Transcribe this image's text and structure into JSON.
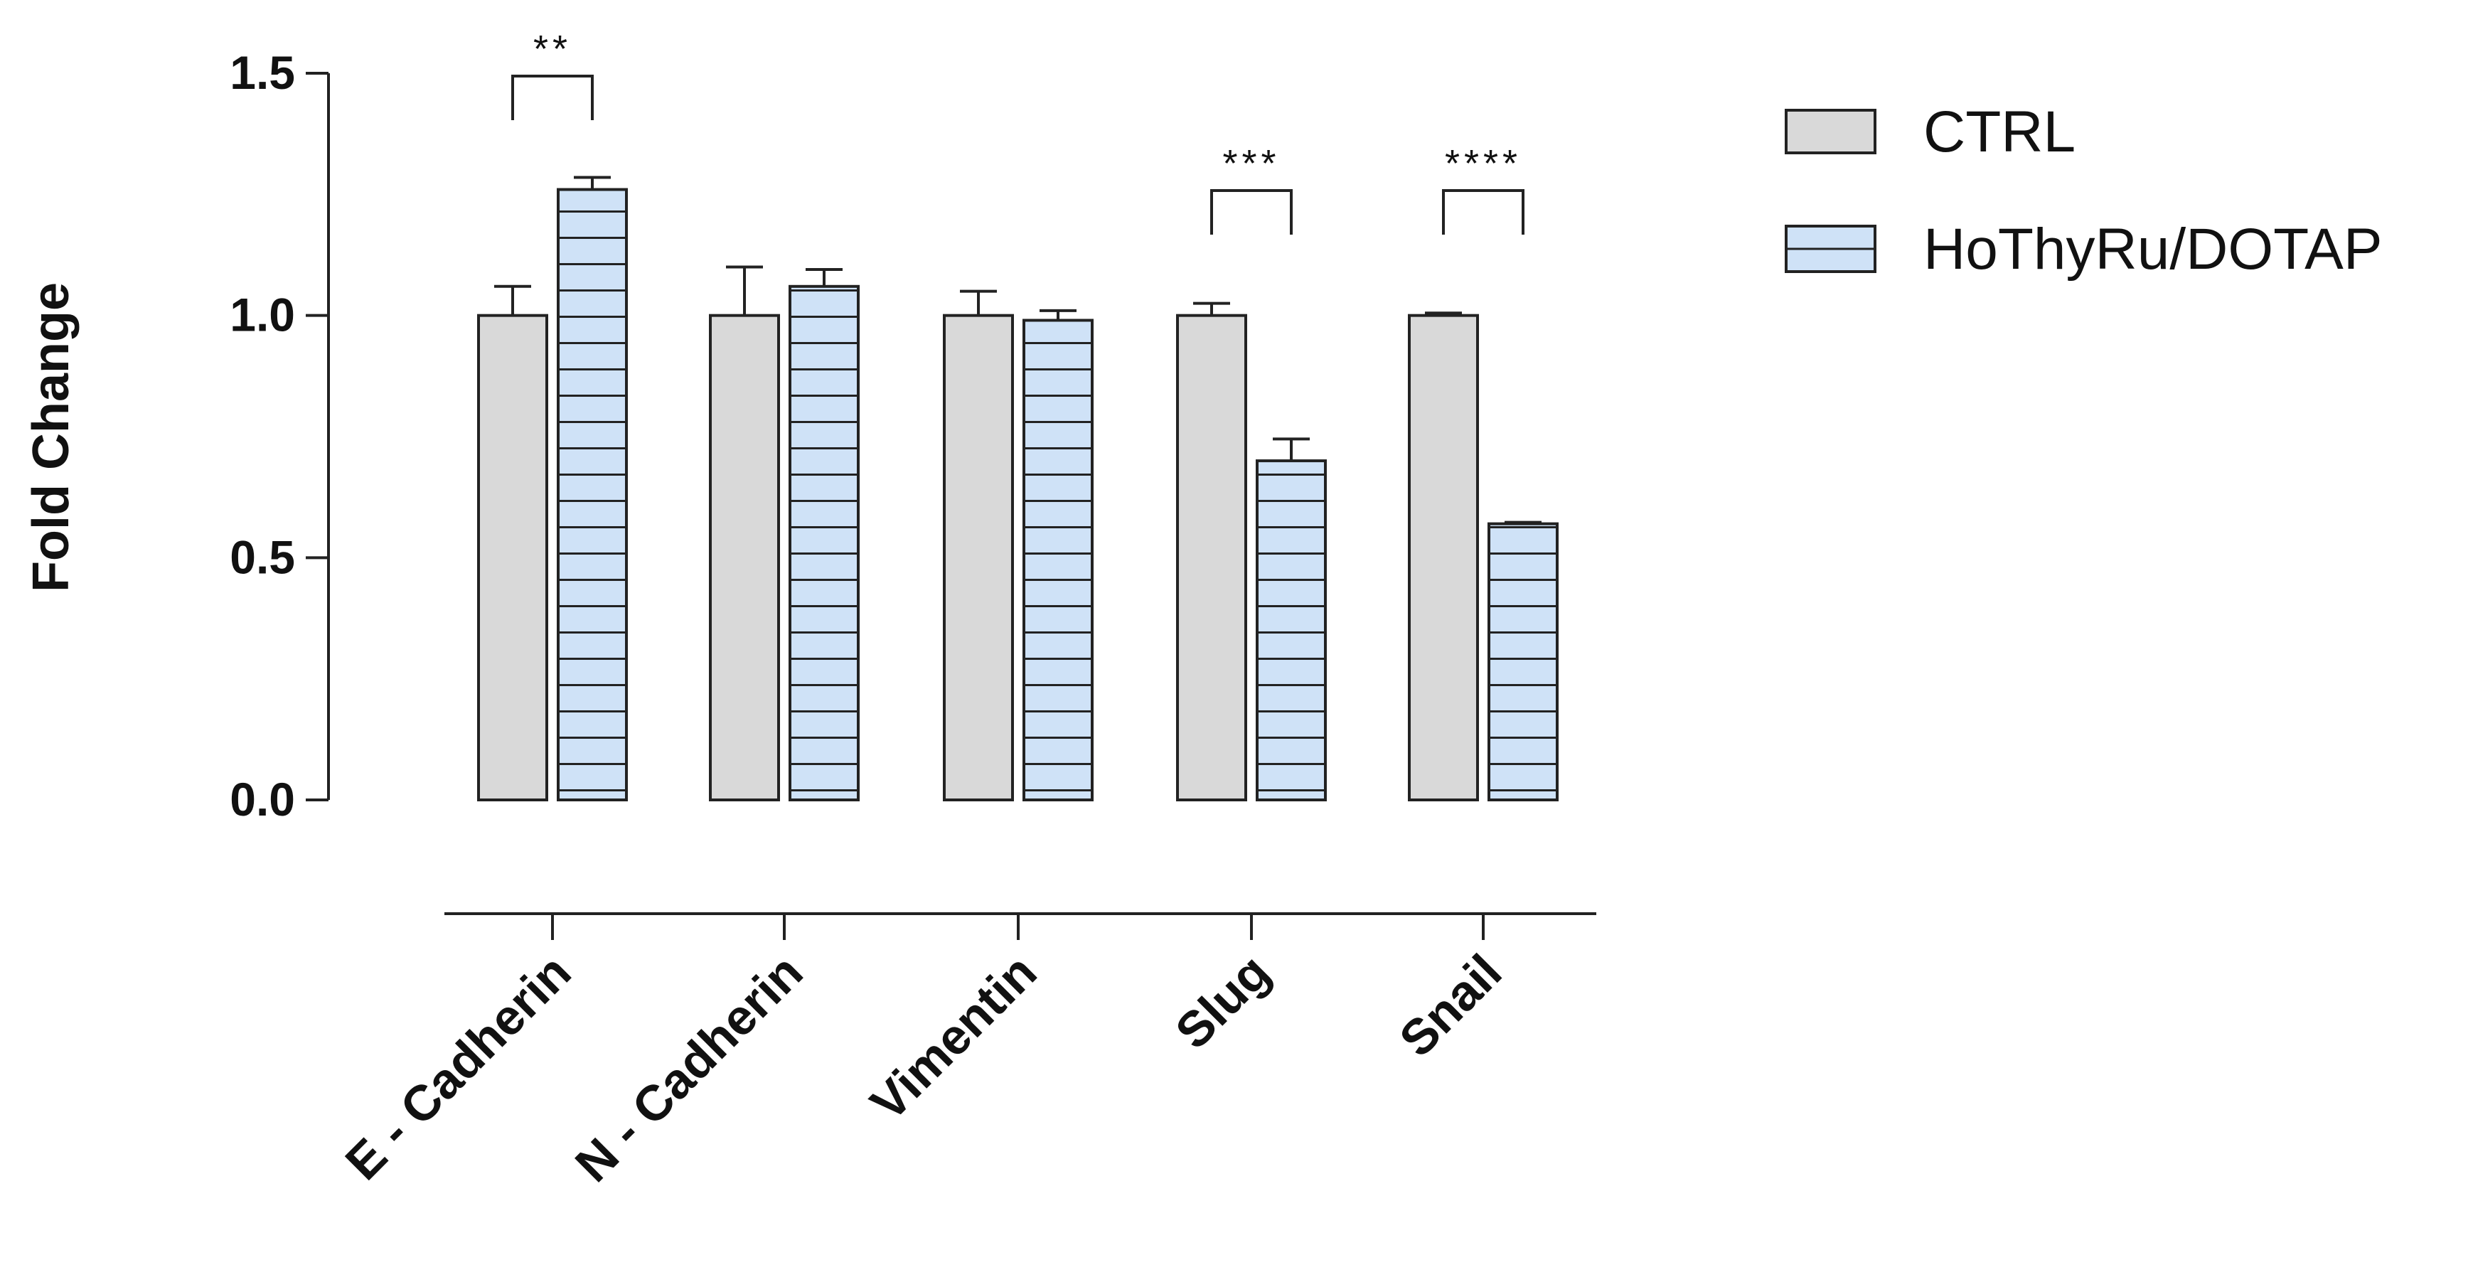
{
  "chart_data": {
    "type": "bar",
    "ylabel": "Fold Change",
    "xlabel": "",
    "ylim": [
      0,
      1.5
    ],
    "yticks": [
      {
        "value": 0.0,
        "label": "0.0"
      },
      {
        "value": 0.5,
        "label": "0.5"
      },
      {
        "value": 1.0,
        "label": "1.0"
      },
      {
        "value": 1.5,
        "label": "1.5"
      }
    ],
    "categories": [
      "E - Cadherin",
      "N - Cadherin",
      "Vimentin",
      "Slug",
      "Snail"
    ],
    "series": [
      {
        "name": "CTRL",
        "fill": "#d9d9d9",
        "pattern": "solid",
        "values": [
          1.0,
          1.0,
          1.0,
          1.0,
          1.0
        ],
        "errors": [
          0.06,
          0.1,
          0.05,
          0.025,
          0.005
        ]
      },
      {
        "name": "HoThyRu/DOTAP",
        "fill": "#cfe2f7",
        "pattern": "horizontal-stripes",
        "values": [
          1.26,
          1.06,
          0.99,
          0.7,
          0.57
        ],
        "errors": [
          0.025,
          0.035,
          0.02,
          0.045,
          0.003
        ]
      }
    ],
    "significance": [
      {
        "category": "E - Cadherin",
        "label": "**"
      },
      {
        "category": "Slug",
        "label": "***"
      },
      {
        "category": "Snail",
        "label": "****"
      }
    ],
    "legend": {
      "position": "top-right"
    }
  }
}
